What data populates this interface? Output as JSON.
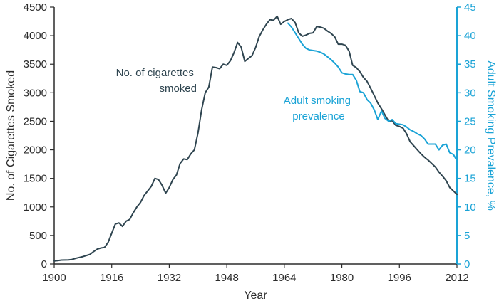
{
  "chart_data": {
    "type": "line",
    "xlabel": "Year",
    "ylabel_left": "No. of Cigarettes Smoked",
    "ylabel_right": "Adult Smoking Prevalence, %",
    "xlim": [
      1900,
      2012
    ],
    "ylim_left": [
      0,
      4500
    ],
    "ylim_right": [
      0,
      45
    ],
    "x_ticks": [
      1900,
      1916,
      1932,
      1948,
      1964,
      1980,
      1996,
      2012
    ],
    "y_ticks_left": [
      0,
      500,
      1000,
      1500,
      2000,
      2500,
      3000,
      3500,
      4000,
      4500
    ],
    "y_ticks_right": [
      0,
      5,
      10,
      15,
      20,
      25,
      30,
      35,
      40,
      45
    ],
    "grid": false,
    "colors": {
      "cigarettes": "#2f4550",
      "prevalence": "#1aa3d6",
      "axis_left": "#2b2b2b",
      "axis_right": "#1aa3d6"
    },
    "annotations": [
      {
        "series": "cigarettes",
        "lines": [
          "No. of cigarettes",
          "smoked"
        ]
      },
      {
        "series": "prevalence",
        "lines": [
          "Adult smoking",
          "prevalence"
        ]
      }
    ],
    "series": [
      {
        "name": "No. of cigarettes smoked",
        "axis": "left",
        "x": [
          1900,
          1901,
          1902,
          1903,
          1904,
          1905,
          1906,
          1907,
          1908,
          1909,
          1910,
          1911,
          1912,
          1913,
          1914,
          1915,
          1916,
          1917,
          1918,
          1919,
          1920,
          1921,
          1922,
          1923,
          1924,
          1925,
          1926,
          1927,
          1928,
          1929,
          1930,
          1931,
          1932,
          1933,
          1934,
          1935,
          1936,
          1937,
          1938,
          1939,
          1940,
          1941,
          1942,
          1943,
          1944,
          1945,
          1946,
          1947,
          1948,
          1949,
          1950,
          1951,
          1952,
          1953,
          1954,
          1955,
          1956,
          1957,
          1958,
          1959,
          1960,
          1961,
          1962,
          1963,
          1964,
          1965,
          1966,
          1967,
          1968,
          1969,
          1970,
          1971,
          1972,
          1973,
          1974,
          1975,
          1976,
          1977,
          1978,
          1979,
          1980,
          1981,
          1982,
          1983,
          1984,
          1985,
          1986,
          1987,
          1988,
          1989,
          1990,
          1991,
          1992,
          1993,
          1994,
          1995,
          1996,
          1997,
          1998,
          1999,
          2000,
          2001,
          2002,
          2003,
          2004,
          2005,
          2006,
          2007,
          2008,
          2009,
          2010,
          2011,
          2012
        ],
        "values": [
          54,
          60,
          68,
          70,
          72,
          80,
          100,
          115,
          130,
          150,
          170,
          220,
          260,
          280,
          290,
          380,
          540,
          700,
          720,
          660,
          750,
          780,
          900,
          1000,
          1080,
          1200,
          1280,
          1360,
          1500,
          1480,
          1380,
          1240,
          1340,
          1480,
          1560,
          1760,
          1840,
          1830,
          1930,
          2000,
          2300,
          2700,
          3000,
          3100,
          3450,
          3440,
          3420,
          3500,
          3480,
          3560,
          3700,
          3880,
          3800,
          3550,
          3600,
          3650,
          3790,
          3980,
          4100,
          4200,
          4280,
          4270,
          4340,
          4200,
          4250,
          4280,
          4300,
          4230,
          4050,
          3990,
          4010,
          4040,
          4050,
          4160,
          4150,
          4130,
          4080,
          4040,
          3980,
          3850,
          3850,
          3830,
          3730,
          3480,
          3440,
          3370,
          3270,
          3200,
          3080,
          2950,
          2820,
          2720,
          2610,
          2500,
          2510,
          2430,
          2410,
          2380,
          2280,
          2140,
          2070,
          2000,
          1930,
          1870,
          1820,
          1760,
          1700,
          1610,
          1540,
          1460,
          1340,
          1280,
          1220
        ]
      },
      {
        "name": "Adult smoking prevalence",
        "axis": "right",
        "x": [
          1965,
          1966,
          1967,
          1968,
          1969,
          1970,
          1971,
          1972,
          1973,
          1974,
          1975,
          1976,
          1977,
          1978,
          1979,
          1980,
          1981,
          1982,
          1983,
          1984,
          1985,
          1986,
          1987,
          1988,
          1989,
          1990,
          1991,
          1992,
          1993,
          1994,
          1995,
          1996,
          1997,
          1998,
          1999,
          2000,
          2001,
          2002,
          2003,
          2004,
          2005,
          2006,
          2007,
          2008,
          2009,
          2010,
          2011,
          2012
        ],
        "values": [
          42.2,
          41.5,
          40.5,
          39.5,
          38.5,
          37.8,
          37.5,
          37.4,
          37.3,
          37.1,
          36.8,
          36.3,
          35.8,
          35.2,
          34.5,
          33.5,
          33.3,
          33.2,
          33.2,
          32.2,
          30.2,
          30.0,
          28.8,
          28.2,
          27.0,
          25.3,
          26.8,
          25.5,
          25.0,
          25.3,
          24.6,
          24.5,
          24.4,
          24.0,
          23.5,
          23.2,
          22.8,
          22.5,
          21.9,
          21.0,
          21.0,
          21.0,
          20.0,
          20.8,
          21.0,
          19.5,
          19.2,
          18.1
        ]
      }
    ]
  }
}
